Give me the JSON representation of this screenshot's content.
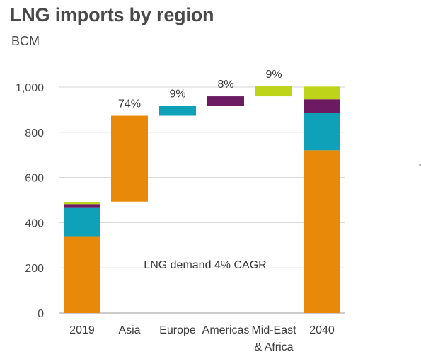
{
  "chart_data": {
    "type": "bar",
    "subtype": "waterfall",
    "title": "LNG imports by region",
    "ylabel": "BCM",
    "ylim": [
      0,
      1000
    ],
    "yticks": [
      {
        "value": 0,
        "label": "0"
      },
      {
        "value": 200,
        "label": "200"
      },
      {
        "value": 400,
        "label": "400"
      },
      {
        "value": 600,
        "label": "600"
      },
      {
        "value": 800,
        "label": "800"
      },
      {
        "value": 1000,
        "label": "1,000"
      }
    ],
    "grid": true,
    "colors": {
      "asia": "#e8890a",
      "europe": "#0fa1b8",
      "americas": "#6c1b63",
      "mideast_africa": "#bdd418"
    },
    "bars": [
      {
        "category": "2019",
        "kind": "stacked",
        "segments": [
          {
            "region": "asia",
            "value": 340
          },
          {
            "region": "europe",
            "value": 125
          },
          {
            "region": "americas",
            "value": 17
          },
          {
            "region": "mideast_africa",
            "value": 10
          }
        ]
      },
      {
        "category": "Asia",
        "kind": "increment",
        "region": "asia",
        "from": 493,
        "to": 873,
        "label": "74%"
      },
      {
        "category": "Europe",
        "kind": "increment",
        "region": "europe",
        "from": 873,
        "to": 917,
        "label": "9%"
      },
      {
        "category": "Americas",
        "kind": "increment",
        "region": "americas",
        "from": 917,
        "to": 959,
        "label": "8%"
      },
      {
        "category": [
          "Mid-East",
          "& Africa"
        ],
        "kind": "increment",
        "region": "mideast_africa",
        "from": 959,
        "to": 1003,
        "label": "9%"
      },
      {
        "category": "2040",
        "kind": "stacked",
        "segments": [
          {
            "region": "asia",
            "value": 720
          },
          {
            "region": "europe",
            "value": 167
          },
          {
            "region": "americas",
            "value": 59
          },
          {
            "region": "mideast_africa",
            "value": 56
          }
        ]
      }
    ],
    "annotation": "LNG demand 4% CAGR"
  }
}
